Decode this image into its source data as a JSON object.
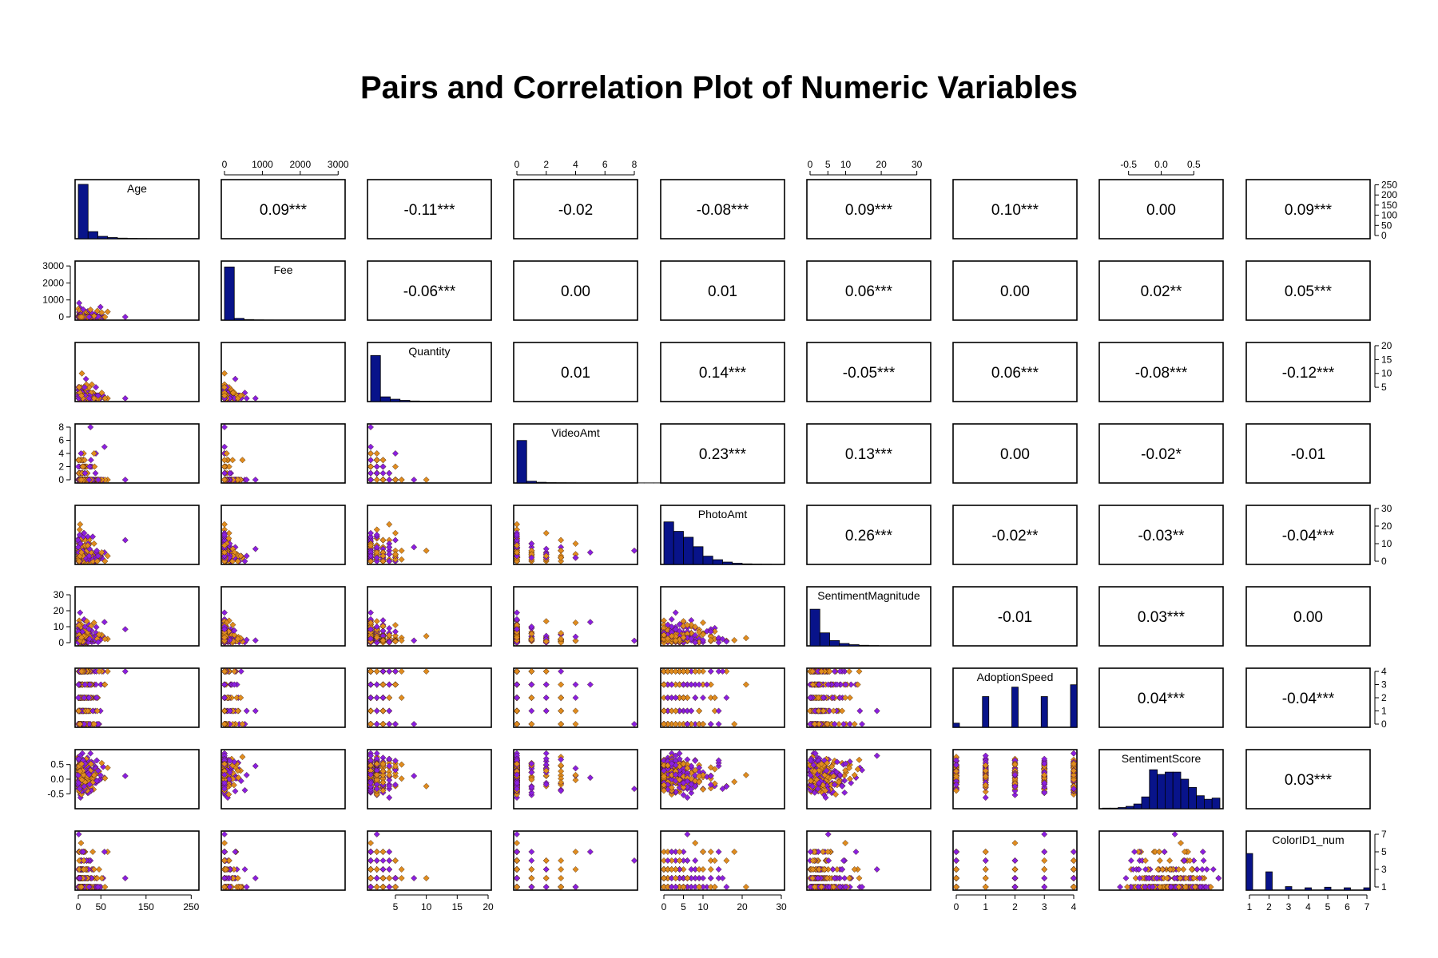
{
  "chart_data": {
    "type": "scatter",
    "title": "Pairs and Correlation Plot of Numeric Variables",
    "variables": [
      "Age",
      "Fee",
      "Quantity",
      "VideoAmt",
      "PhotoAmt",
      "SentimentMagnitude",
      "AdoptionSpeed",
      "SentimentScore",
      "ColorID1_num"
    ],
    "point_colors": [
      "#8a1fe0",
      "#e08c1f"
    ],
    "histogram_color": "#08138a",
    "axis_ranges": {
      "Age": [
        0,
        260
      ],
      "Fee": [
        0,
        3100
      ],
      "Quantity": [
        1,
        20
      ],
      "VideoAmt": [
        0,
        8
      ],
      "PhotoAmt": [
        0,
        30
      ],
      "SentimentMagnitude": [
        0,
        33
      ],
      "AdoptionSpeed": [
        0,
        4
      ],
      "SentimentScore": [
        -0.9,
        0.9
      ],
      "ColorID1_num": [
        1,
        7
      ]
    },
    "top_axes": [
      {
        "col": 1,
        "ticks": [
          0,
          1000,
          2000,
          3000
        ],
        "labels": [
          "0",
          "1000",
          "2000",
          "3000"
        ]
      },
      {
        "col": 3,
        "ticks": [
          0,
          2,
          4,
          6,
          8
        ],
        "labels": [
          "0",
          "2",
          "4",
          "6",
          "8"
        ]
      },
      {
        "col": 5,
        "ticks": [
          0,
          5,
          10,
          20,
          30
        ],
        "labels": [
          "0",
          "5",
          "10",
          "20",
          "30"
        ]
      },
      {
        "col": 7,
        "ticks": [
          -0.5,
          0,
          0.5
        ],
        "labels": [
          "-0.5",
          "0.0",
          "0.5"
        ]
      }
    ],
    "bottom_axes": [
      {
        "col": 0,
        "ticks": [
          0,
          50,
          150,
          250
        ],
        "labels": [
          "0",
          "50",
          "150",
          "250"
        ]
      },
      {
        "col": 2,
        "ticks": [
          5,
          10,
          15,
          20
        ],
        "labels": [
          "5",
          "10",
          "15",
          "20"
        ]
      },
      {
        "col": 4,
        "ticks": [
          0,
          5,
          10,
          20,
          30
        ],
        "labels": [
          "0",
          "5",
          "10",
          "20",
          "30"
        ]
      },
      {
        "col": 6,
        "ticks": [
          0,
          1,
          2,
          3,
          4
        ],
        "labels": [
          "0",
          "1",
          "2",
          "3",
          "4"
        ]
      },
      {
        "col": 8,
        "ticks": [
          1,
          2,
          3,
          4,
          5,
          6,
          7
        ],
        "labels": [
          "1",
          "2",
          "3",
          "4",
          "5",
          "6",
          "7"
        ]
      }
    ],
    "left_axes": [
      {
        "row": 1,
        "ticks": [
          0,
          1000,
          2000,
          3000
        ],
        "labels": [
          "0",
          "1000",
          "2000",
          "3000"
        ]
      },
      {
        "row": 3,
        "ticks": [
          0,
          2,
          4,
          6,
          8
        ],
        "labels": [
          "0",
          "2",
          "4",
          "6",
          "8"
        ]
      },
      {
        "row": 5,
        "ticks": [
          0,
          10,
          20,
          30
        ],
        "labels": [
          "0",
          "10",
          "20",
          "30"
        ]
      },
      {
        "row": 7,
        "ticks": [
          -0.5,
          0,
          0.5
        ],
        "labels": [
          "-0.5",
          "0.0",
          "0.5"
        ]
      }
    ],
    "right_axes": [
      {
        "row": 0,
        "range": [
          0,
          260
        ],
        "ticks": [
          0,
          50,
          100,
          150,
          200,
          250
        ],
        "labels": [
          "0",
          "50",
          "100",
          "150",
          "200",
          "250"
        ]
      },
      {
        "row": 2,
        "range": [
          1,
          20
        ],
        "ticks": [
          5,
          10,
          15,
          20
        ],
        "labels": [
          "5",
          "10",
          "15",
          "20"
        ]
      },
      {
        "row": 4,
        "range": [
          0,
          30
        ],
        "ticks": [
          0,
          10,
          20,
          30
        ],
        "labels": [
          "0",
          "10",
          "20",
          "30"
        ]
      },
      {
        "row": 6,
        "range": [
          0,
          4
        ],
        "ticks": [
          0,
          1,
          2,
          3,
          4
        ],
        "labels": [
          "0",
          "1",
          "2",
          "3",
          "4"
        ]
      },
      {
        "row": 8,
        "range": [
          1,
          7
        ],
        "ticks": [
          1,
          3,
          5,
          7
        ],
        "labels": [
          "1",
          "3",
          "5",
          "7"
        ]
      }
    ],
    "correlations": [
      {
        "row": 0,
        "col": 1,
        "label": "0.09***"
      },
      {
        "row": 0,
        "col": 2,
        "label": "-0.11***"
      },
      {
        "row": 0,
        "col": 3,
        "label": "-0.02"
      },
      {
        "row": 0,
        "col": 4,
        "label": "-0.08***"
      },
      {
        "row": 0,
        "col": 5,
        "label": "0.09***"
      },
      {
        "row": 0,
        "col": 6,
        "label": "0.10***"
      },
      {
        "row": 0,
        "col": 7,
        "label": "0.00"
      },
      {
        "row": 0,
        "col": 8,
        "label": "0.09***"
      },
      {
        "row": 1,
        "col": 2,
        "label": "-0.06***"
      },
      {
        "row": 1,
        "col": 3,
        "label": "0.00"
      },
      {
        "row": 1,
        "col": 4,
        "label": "0.01"
      },
      {
        "row": 1,
        "col": 5,
        "label": "0.06***"
      },
      {
        "row": 1,
        "col": 6,
        "label": "0.00"
      },
      {
        "row": 1,
        "col": 7,
        "label": "0.02**"
      },
      {
        "row": 1,
        "col": 8,
        "label": "0.05***"
      },
      {
        "row": 2,
        "col": 3,
        "label": "0.01"
      },
      {
        "row": 2,
        "col": 4,
        "label": "0.14***"
      },
      {
        "row": 2,
        "col": 5,
        "label": "-0.05***"
      },
      {
        "row": 2,
        "col": 6,
        "label": "0.06***"
      },
      {
        "row": 2,
        "col": 7,
        "label": "-0.08***"
      },
      {
        "row": 2,
        "col": 8,
        "label": "-0.12***"
      },
      {
        "row": 3,
        "col": 4,
        "label": "0.23***"
      },
      {
        "row": 3,
        "col": 5,
        "label": "0.13***"
      },
      {
        "row": 3,
        "col": 6,
        "label": "0.00"
      },
      {
        "row": 3,
        "col": 7,
        "label": "-0.02*"
      },
      {
        "row": 3,
        "col": 8,
        "label": "-0.01"
      },
      {
        "row": 4,
        "col": 5,
        "label": "0.26***"
      },
      {
        "row": 4,
        "col": 6,
        "label": "-0.02**"
      },
      {
        "row": 4,
        "col": 7,
        "label": "-0.03**"
      },
      {
        "row": 4,
        "col": 8,
        "label": "-0.04***"
      },
      {
        "row": 5,
        "col": 6,
        "label": "-0.01"
      },
      {
        "row": 5,
        "col": 7,
        "label": "0.03***"
      },
      {
        "row": 5,
        "col": 8,
        "label": "0.00"
      },
      {
        "row": 6,
        "col": 7,
        "label": "0.04***"
      },
      {
        "row": 6,
        "col": 8,
        "label": "-0.04***"
      },
      {
        "row": 7,
        "col": 8,
        "label": "0.03***"
      }
    ],
    "histograms": [
      {
        "variable": "Age",
        "bin_heights": [
          0.92,
          0.12,
          0.04,
          0.02,
          0.01,
          0.005,
          0.003,
          0.002,
          0.001,
          0.001
        ]
      },
      {
        "variable": "Fee",
        "bin_heights": [
          0.9,
          0.03,
          0.01,
          0.004,
          0.002,
          0.001,
          0.001,
          0.001
        ]
      },
      {
        "variable": "Quantity",
        "bin_heights": [
          0.78,
          0.08,
          0.04,
          0.02,
          0.01,
          0.006,
          0.004,
          0.002,
          0.002,
          0.002
        ]
      },
      {
        "variable": "VideoAmt",
        "bin_heights": [
          0.72,
          0.03,
          0.012,
          0.006,
          0.004,
          0.003,
          0.002,
          0.002,
          0.002,
          0.002,
          0.002,
          0.002,
          0.002,
          0.002,
          0.002,
          0.002
        ]
      },
      {
        "variable": "PhotoAmt",
        "bin_heights": [
          0.72,
          0.56,
          0.46,
          0.3,
          0.14,
          0.08,
          0.04,
          0.02,
          0.01,
          0.006,
          0.004,
          0.002
        ]
      },
      {
        "variable": "SentimentMagnitude",
        "bin_heights": [
          0.62,
          0.22,
          0.09,
          0.04,
          0.02,
          0.01,
          0.005,
          0.002
        ]
      },
      {
        "variable": "AdoptionSpeed",
        "bin_positions": [
          0,
          1,
          2,
          3,
          4
        ],
        "bin_heights": [
          0.07,
          0.52,
          0.68,
          0.52,
          0.72
        ]
      },
      {
        "variable": "SentimentScore",
        "bin_heights": [
          0.01,
          0.01,
          0.02,
          0.04,
          0.08,
          0.2,
          0.66,
          0.58,
          0.62,
          0.62,
          0.5,
          0.36,
          0.22,
          0.16,
          0.18
        ]
      },
      {
        "variable": "ColorID1_num",
        "bin_positions": [
          1,
          2,
          3,
          4,
          5,
          6,
          7
        ],
        "bin_heights": [
          0.62,
          0.31,
          0.06,
          0.04,
          0.05,
          0.04,
          0.04
        ]
      }
    ]
  }
}
